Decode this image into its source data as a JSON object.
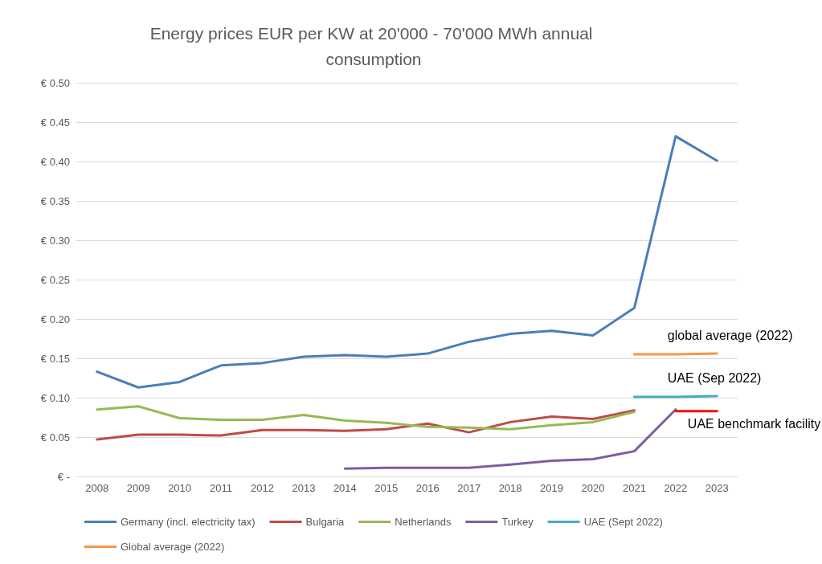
{
  "chart_data": {
    "type": "line",
    "title": "Energy prices EUR per KW at 20'000 - 70'000 MWh annual consumption",
    "categories": [
      "2008",
      "2009",
      "2010",
      "2011",
      "2012",
      "2013",
      "2014",
      "2015",
      "2016",
      "2017",
      "2018",
      "2019",
      "2020",
      "2021",
      "2022",
      "2023"
    ],
    "series": [
      {
        "name": "Germany (incl. electricity tax)",
        "color": "#4a7ebb",
        "values": [
          0.133,
          0.113,
          0.12,
          0.141,
          0.144,
          0.152,
          0.154,
          0.152,
          0.156,
          0.171,
          0.181,
          0.185,
          0.179,
          0.214,
          0.432,
          0.401
        ]
      },
      {
        "name": "Bulgaria",
        "color": "#be4b48",
        "values": [
          0.047,
          0.053,
          0.053,
          0.052,
          0.059,
          0.059,
          0.058,
          0.06,
          0.067,
          0.056,
          0.069,
          0.076,
          0.073,
          0.084,
          null,
          null
        ]
      },
      {
        "name": "Netherlands",
        "color": "#98b954",
        "values": [
          0.085,
          0.089,
          0.074,
          0.072,
          0.072,
          0.078,
          0.071,
          0.068,
          0.063,
          0.062,
          0.06,
          0.065,
          0.069,
          0.082,
          null,
          null
        ]
      },
      {
        "name": "Turkey",
        "color": "#7d5fa0",
        "values": [
          null,
          null,
          null,
          null,
          null,
          null,
          0.01,
          0.011,
          0.011,
          0.011,
          0.015,
          0.02,
          0.022,
          0.032,
          0.085,
          null
        ]
      },
      {
        "name": "UAE (Sept 2022)",
        "color": "#46aac5",
        "values": [
          null,
          null,
          null,
          null,
          null,
          null,
          null,
          null,
          null,
          null,
          null,
          null,
          null,
          0.101,
          0.101,
          0.102
        ]
      },
      {
        "name": "Global average (2022)",
        "color": "#f79646",
        "values": [
          null,
          null,
          null,
          null,
          null,
          null,
          null,
          null,
          null,
          null,
          null,
          null,
          null,
          0.155,
          0.155,
          0.156
        ]
      },
      {
        "color": "#ff0000",
        "values": [
          null,
          null,
          null,
          null,
          null,
          null,
          null,
          null,
          null,
          null,
          null,
          null,
          null,
          null,
          0.083,
          0.083
        ]
      }
    ],
    "annotations": [
      {
        "text": "global average (2022)",
        "x": "2022",
        "y": 0.155
      },
      {
        "text": "UAE (Sep 2022)",
        "x": "2022",
        "y": 0.101
      },
      {
        "text": "UAE benchmark facility",
        "x": "2022",
        "y": 0.083
      }
    ],
    "ylim": [
      0,
      0.5
    ],
    "yticks": [
      {
        "value": 0,
        "label": "€ -"
      },
      {
        "value": 0.05,
        "label": "€ 0.05"
      },
      {
        "value": 0.1,
        "label": "€ 0.10"
      },
      {
        "value": 0.15,
        "label": "€ 0.15"
      },
      {
        "value": 0.2,
        "label": "€ 0.20"
      },
      {
        "value": 0.25,
        "label": "€ 0.25"
      },
      {
        "value": 0.3,
        "label": "€ 0.30"
      },
      {
        "value": 0.35,
        "label": "€ 0.35"
      },
      {
        "value": 0.4,
        "label": "€ 0.40"
      },
      {
        "value": 0.45,
        "label": "€ 0.45"
      },
      {
        "value": 0.5,
        "label": "€ 0.50"
      }
    ],
    "grid": "y",
    "legend": "bottom",
    "marker": "none",
    "line_style": "solid"
  }
}
